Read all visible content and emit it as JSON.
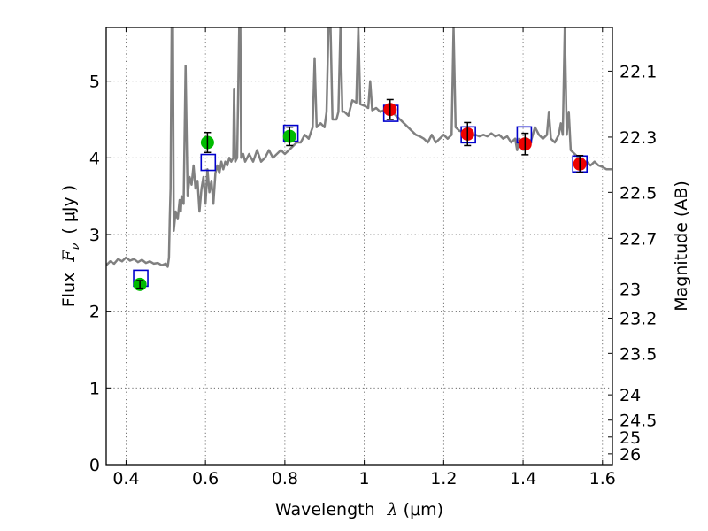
{
  "chart_data": {
    "type": "scatter",
    "xlabel_text": "Wavelength",
    "xlabel_symbol": "λ",
    "xlabel_unit": "(μm)",
    "ylabel_left_text": "Flux",
    "ylabel_left_symbol": "F",
    "ylabel_left_subscript": "ν",
    "ylabel_left_unit": "( μJy )",
    "ylabel_right": "Magnitude (AB)",
    "xlim": [
      0.35,
      1.625
    ],
    "ylim": [
      0,
      5.7
    ],
    "x_ticks": [
      0.4,
      0.6,
      0.8,
      1.0,
      1.2,
      1.4,
      1.6
    ],
    "x_tick_labels": [
      "0.4",
      "0.6",
      "0.8",
      "1",
      "1.2",
      "1.4",
      "1.6"
    ],
    "y_ticks": [
      0,
      1,
      2,
      3,
      4,
      5
    ],
    "y_tick_labels": [
      "0",
      "1",
      "2",
      "3",
      "4",
      "5"
    ],
    "right_ticks": [
      {
        "label": "22.1",
        "flux": 5.13
      },
      {
        "label": "22.3",
        "flux": 4.27
      },
      {
        "label": "22.5",
        "flux": 3.55
      },
      {
        "label": "22.7",
        "flux": 2.95
      },
      {
        "label": "23",
        "flux": 2.29
      },
      {
        "label": "23.2",
        "flux": 1.91
      },
      {
        "label": "23.5",
        "flux": 1.45
      },
      {
        "label": "24",
        "flux": 0.91
      },
      {
        "label": "24.5",
        "flux": 0.58
      },
      {
        "label": "25",
        "flux": 0.36
      },
      {
        "label": "26",
        "flux": 0.14
      }
    ],
    "grid": true,
    "colors": {
      "spectrum": "#808080",
      "green": "#00bb00",
      "red": "#ee0000",
      "box": "#0000cc",
      "errorbar": "#000000"
    },
    "spectrum": [
      [
        0.35,
        2.6
      ],
      [
        0.36,
        2.65
      ],
      [
        0.37,
        2.62
      ],
      [
        0.38,
        2.68
      ],
      [
        0.39,
        2.65
      ],
      [
        0.4,
        2.7
      ],
      [
        0.41,
        2.66
      ],
      [
        0.42,
        2.68
      ],
      [
        0.43,
        2.64
      ],
      [
        0.44,
        2.67
      ],
      [
        0.45,
        2.63
      ],
      [
        0.46,
        2.65
      ],
      [
        0.47,
        2.62
      ],
      [
        0.48,
        2.63
      ],
      [
        0.49,
        2.6
      ],
      [
        0.5,
        2.62
      ],
      [
        0.505,
        2.58
      ],
      [
        0.508,
        2.7
      ],
      [
        0.51,
        3.2
      ],
      [
        0.512,
        3.6
      ],
      [
        0.515,
        5.7
      ],
      [
        0.518,
        5.7
      ],
      [
        0.52,
        3.05
      ],
      [
        0.525,
        3.3
      ],
      [
        0.53,
        3.2
      ],
      [
        0.535,
        3.45
      ],
      [
        0.538,
        3.3
      ],
      [
        0.54,
        3.5
      ],
      [
        0.545,
        3.4
      ],
      [
        0.55,
        5.2
      ],
      [
        0.555,
        3.5
      ],
      [
        0.56,
        3.75
      ],
      [
        0.565,
        3.65
      ],
      [
        0.57,
        3.9
      ],
      [
        0.575,
        3.6
      ],
      [
        0.58,
        3.7
      ],
      [
        0.585,
        3.3
      ],
      [
        0.59,
        3.6
      ],
      [
        0.595,
        3.75
      ],
      [
        0.6,
        3.4
      ],
      [
        0.605,
        3.85
      ],
      [
        0.61,
        3.55
      ],
      [
        0.615,
        3.7
      ],
      [
        0.62,
        3.4
      ],
      [
        0.625,
        3.8
      ],
      [
        0.63,
        3.9
      ],
      [
        0.635,
        3.8
      ],
      [
        0.64,
        3.95
      ],
      [
        0.645,
        3.85
      ],
      [
        0.65,
        3.95
      ],
      [
        0.655,
        3.9
      ],
      [
        0.66,
        4.0
      ],
      [
        0.665,
        3.95
      ],
      [
        0.67,
        4.0
      ],
      [
        0.672,
        4.9
      ],
      [
        0.675,
        3.95
      ],
      [
        0.68,
        4.0
      ],
      [
        0.685,
        5.7
      ],
      [
        0.688,
        5.7
      ],
      [
        0.69,
        4.0
      ],
      [
        0.695,
        4.05
      ],
      [
        0.7,
        3.95
      ],
      [
        0.71,
        4.05
      ],
      [
        0.72,
        3.95
      ],
      [
        0.73,
        4.1
      ],
      [
        0.74,
        3.95
      ],
      [
        0.75,
        4.0
      ],
      [
        0.76,
        4.1
      ],
      [
        0.77,
        4.0
      ],
      [
        0.78,
        4.05
      ],
      [
        0.79,
        4.1
      ],
      [
        0.8,
        4.05
      ],
      [
        0.81,
        4.1
      ],
      [
        0.82,
        4.15
      ],
      [
        0.83,
        4.2
      ],
      [
        0.84,
        4.2
      ],
      [
        0.85,
        4.3
      ],
      [
        0.86,
        4.25
      ],
      [
        0.87,
        4.4
      ],
      [
        0.875,
        5.3
      ],
      [
        0.88,
        4.4
      ],
      [
        0.89,
        4.45
      ],
      [
        0.9,
        4.4
      ],
      [
        0.905,
        4.6
      ],
      [
        0.91,
        5.7
      ],
      [
        0.915,
        5.7
      ],
      [
        0.92,
        4.5
      ],
      [
        0.93,
        4.5
      ],
      [
        0.935,
        4.6
      ],
      [
        0.94,
        5.7
      ],
      [
        0.945,
        4.6
      ],
      [
        0.95,
        4.6
      ],
      [
        0.96,
        4.55
      ],
      [
        0.97,
        4.75
      ],
      [
        0.98,
        4.72
      ],
      [
        0.985,
        5.7
      ],
      [
        0.99,
        4.7
      ],
      [
        1.0,
        4.68
      ],
      [
        1.01,
        4.65
      ],
      [
        1.015,
        5.0
      ],
      [
        1.02,
        4.62
      ],
      [
        1.03,
        4.65
      ],
      [
        1.04,
        4.6
      ],
      [
        1.05,
        4.62
      ],
      [
        1.06,
        4.58
      ],
      [
        1.07,
        4.6
      ],
      [
        1.08,
        4.55
      ],
      [
        1.09,
        4.5
      ],
      [
        1.1,
        4.45
      ],
      [
        1.11,
        4.4
      ],
      [
        1.12,
        4.35
      ],
      [
        1.13,
        4.3
      ],
      [
        1.14,
        4.28
      ],
      [
        1.15,
        4.25
      ],
      [
        1.16,
        4.2
      ],
      [
        1.17,
        4.3
      ],
      [
        1.18,
        4.2
      ],
      [
        1.19,
        4.25
      ],
      [
        1.2,
        4.3
      ],
      [
        1.21,
        4.25
      ],
      [
        1.22,
        4.3
      ],
      [
        1.225,
        5.7
      ],
      [
        1.23,
        4.4
      ],
      [
        1.24,
        4.35
      ],
      [
        1.25,
        4.35
      ],
      [
        1.26,
        4.3
      ],
      [
        1.27,
        4.28
      ],
      [
        1.28,
        4.3
      ],
      [
        1.29,
        4.28
      ],
      [
        1.3,
        4.3
      ],
      [
        1.31,
        4.28
      ],
      [
        1.32,
        4.32
      ],
      [
        1.33,
        4.28
      ],
      [
        1.34,
        4.3
      ],
      [
        1.35,
        4.25
      ],
      [
        1.36,
        4.28
      ],
      [
        1.37,
        4.2
      ],
      [
        1.38,
        4.25
      ],
      [
        1.385,
        4.1
      ],
      [
        1.39,
        4.25
      ],
      [
        1.4,
        4.2
      ],
      [
        1.41,
        4.25
      ],
      [
        1.42,
        4.22
      ],
      [
        1.43,
        4.4
      ],
      [
        1.44,
        4.3
      ],
      [
        1.45,
        4.25
      ],
      [
        1.46,
        4.3
      ],
      [
        1.465,
        4.6
      ],
      [
        1.47,
        4.25
      ],
      [
        1.48,
        4.2
      ],
      [
        1.49,
        4.3
      ],
      [
        1.495,
        4.45
      ],
      [
        1.5,
        4.3
      ],
      [
        1.505,
        5.7
      ],
      [
        1.51,
        4.3
      ],
      [
        1.515,
        4.6
      ],
      [
        1.52,
        4.1
      ],
      [
        1.53,
        4.05
      ],
      [
        1.54,
        4.0
      ],
      [
        1.55,
        3.95
      ],
      [
        1.56,
        3.95
      ],
      [
        1.57,
        3.9
      ],
      [
        1.58,
        3.95
      ],
      [
        1.59,
        3.9
      ],
      [
        1.6,
        3.88
      ],
      [
        1.61,
        3.85
      ],
      [
        1.625,
        3.85
      ]
    ],
    "photometry_green": [
      {
        "x": 0.435,
        "y": 2.35,
        "err": 0.05
      },
      {
        "x": 0.605,
        "y": 4.2,
        "err": 0.13
      },
      {
        "x": 0.812,
        "y": 4.28,
        "err": 0.12
      }
    ],
    "photometry_red": [
      {
        "x": 1.065,
        "y": 4.63,
        "err": 0.13
      },
      {
        "x": 1.26,
        "y": 4.31,
        "err": 0.15
      },
      {
        "x": 1.405,
        "y": 4.18,
        "err": 0.14
      },
      {
        "x": 1.543,
        "y": 3.92,
        "err": 0.11
      }
    ],
    "model_boxes": [
      {
        "x": 0.437,
        "y": 2.43
      },
      {
        "x": 0.607,
        "y": 3.94
      },
      {
        "x": 0.815,
        "y": 4.32
      },
      {
        "x": 1.067,
        "y": 4.58
      },
      {
        "x": 1.262,
        "y": 4.3
      },
      {
        "x": 1.403,
        "y": 4.3
      },
      {
        "x": 1.543,
        "y": 3.92
      }
    ]
  }
}
